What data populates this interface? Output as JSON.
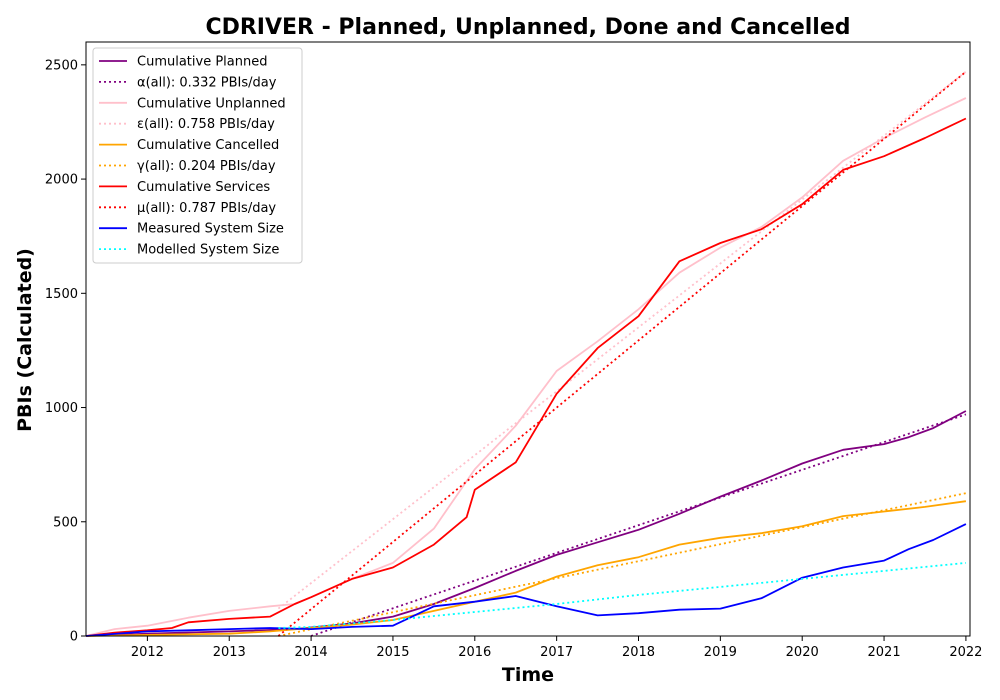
{
  "chart_data": {
    "type": "line",
    "title": "CDRIVER - Planned, Unplanned, Done  and Cancelled",
    "xlabel": "Time",
    "ylabel": "PBIs (Calculated)",
    "xlim": [
      2011.25,
      2022.05
    ],
    "ylim": [
      0,
      2600
    ],
    "x_ticks": [
      "2012",
      "2013",
      "2014",
      "2015",
      "2016",
      "2017",
      "2018",
      "2019",
      "2020",
      "2021",
      "2022"
    ],
    "y_ticks": [
      "0",
      "500",
      "1000",
      "1500",
      "2000",
      "2500"
    ],
    "grid": false,
    "legend_position": "top-left",
    "series": [
      {
        "name": "Cumulative Planned",
        "style": "solid",
        "color": "#800080",
        "x": [
          2011.25,
          2012,
          2013,
          2013.8,
          2014.5,
          2015,
          2015.5,
          2016,
          2016.5,
          2017,
          2017.5,
          2018,
          2018.5,
          2019,
          2019.5,
          2020,
          2020.5,
          2021,
          2021.3,
          2021.6,
          2022
        ],
        "y": [
          0,
          10,
          20,
          30,
          55,
          85,
          140,
          210,
          285,
          355,
          410,
          465,
          535,
          610,
          680,
          755,
          815,
          840,
          870,
          910,
          985
        ]
      },
      {
        "name": "α(all): 0.332 PBIs/day",
        "style": "dotted",
        "color": "#800080",
        "x": [
          2014,
          2022
        ],
        "y": [
          0,
          970
        ]
      },
      {
        "name": "Cumulative Unplanned",
        "style": "solid",
        "color": "#ffc0cb",
        "x": [
          2011.25,
          2011.6,
          2012,
          2012.5,
          2013,
          2013.5,
          2013.8,
          2014,
          2014.5,
          2015,
          2015.5,
          2016,
          2016.5,
          2017,
          2017.5,
          2018,
          2018.5,
          2019,
          2019.5,
          2020,
          2020.5,
          2021,
          2021.5,
          2022
        ],
        "y": [
          0,
          30,
          45,
          80,
          110,
          130,
          140,
          170,
          250,
          320,
          470,
          730,
          920,
          1160,
          1290,
          1430,
          1590,
          1700,
          1790,
          1920,
          2080,
          2180,
          2270,
          2355
        ]
      },
      {
        "name": "ε(all): 0.758 PBIs/day",
        "style": "dotted",
        "color": "#ffc0cb",
        "x": [
          2013.6,
          2022
        ],
        "y": [
          120,
          2470
        ]
      },
      {
        "name": "Cumulative Cancelled",
        "style": "solid",
        "color": "#ffa500",
        "x": [
          2011.25,
          2012,
          2013,
          2013.5,
          2014,
          2014.5,
          2015,
          2015.5,
          2016,
          2016.5,
          2017,
          2017.5,
          2018,
          2018.5,
          2019,
          2019.5,
          2020,
          2020.5,
          2021,
          2021.5,
          2022
        ],
        "y": [
          0,
          5,
          10,
          20,
          35,
          50,
          70,
          110,
          150,
          190,
          260,
          310,
          345,
          400,
          430,
          450,
          480,
          525,
          545,
          565,
          590
        ]
      },
      {
        "name": "γ(all): 0.204 PBIs/day",
        "style": "dotted",
        "color": "#ffa500",
        "x": [
          2013.6,
          2022
        ],
        "y": [
          0,
          625
        ]
      },
      {
        "name": "Cumulative Services",
        "style": "solid",
        "color": "#ff0000",
        "x": [
          2011.25,
          2011.6,
          2012,
          2012.3,
          2012.5,
          2013,
          2013.5,
          2013.8,
          2014,
          2014.5,
          2015,
          2015.5,
          2015.9,
          2016,
          2016.5,
          2017,
          2017.5,
          2018,
          2018.5,
          2019,
          2019.5,
          2020,
          2020.5,
          2021,
          2021.5,
          2022
        ],
        "y": [
          0,
          15,
          25,
          35,
          60,
          75,
          85,
          140,
          170,
          250,
          300,
          400,
          520,
          640,
          760,
          1060,
          1260,
          1400,
          1640,
          1720,
          1780,
          1890,
          2040,
          2100,
          2180,
          2265
        ]
      },
      {
        "name": "μ(all): 0.787 PBIs/day",
        "style": "dotted",
        "color": "#ff0000",
        "x": [
          2013.6,
          2022
        ],
        "y": [
          0,
          2470
        ]
      },
      {
        "name": "Measured System Size",
        "style": "solid",
        "color": "#0000ff",
        "x": [
          2011.25,
          2012,
          2012.5,
          2013,
          2013.5,
          2014,
          2014.5,
          2015,
          2015.5,
          2016,
          2016.5,
          2017,
          2017.5,
          2018,
          2018.5,
          2019,
          2019.5,
          2020,
          2020.5,
          2021,
          2021.3,
          2021.6,
          2022
        ],
        "y": [
          0,
          20,
          25,
          30,
          35,
          30,
          40,
          45,
          130,
          150,
          175,
          130,
          90,
          100,
          115,
          120,
          165,
          255,
          300,
          330,
          380,
          420,
          490
        ]
      },
      {
        "name": "Modelled System Size",
        "style": "dotted",
        "color": "#00ffff",
        "x": [
          2013.6,
          2014,
          2015,
          2016,
          2017,
          2018,
          2019,
          2020,
          2021,
          2022
        ],
        "y": [
          35,
          40,
          70,
          105,
          140,
          180,
          215,
          250,
          285,
          320
        ]
      }
    ]
  }
}
